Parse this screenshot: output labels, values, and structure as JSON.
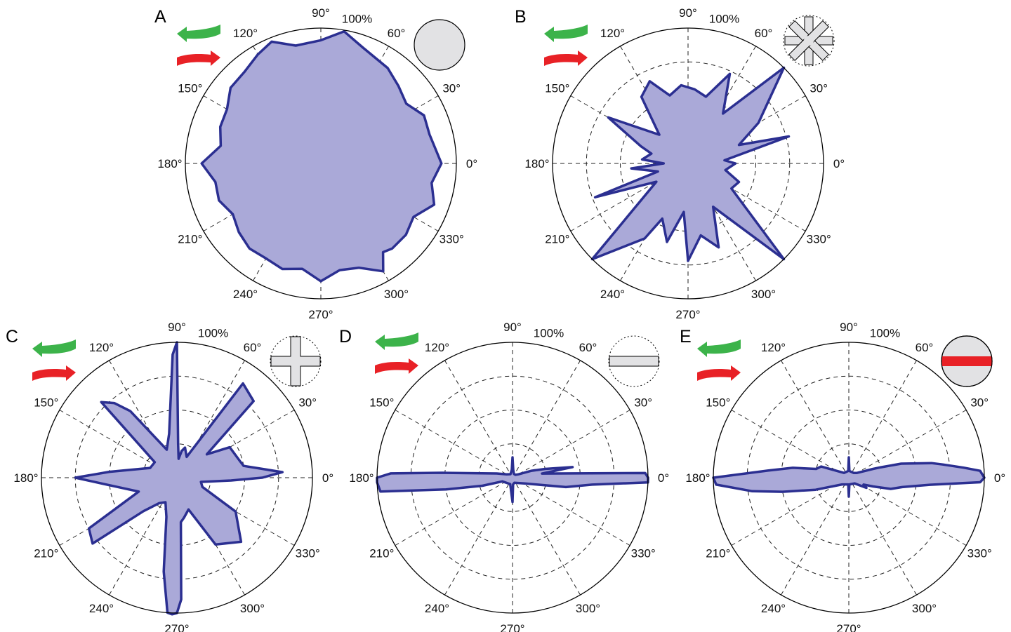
{
  "page": {
    "colors": {
      "fill": "#aaa9d8",
      "stroke": "#2b2f91",
      "green_arrow": "#3cb34a",
      "red_arrow": "#e82126",
      "icon_fill": "#e2e2e4",
      "red_bar": "#e82126"
    },
    "icons": [
      "green-arrow-left-icon",
      "red-arrow-right-icon"
    ]
  },
  "chart_data": [
    {
      "panel": "A",
      "type": "polar-area",
      "angle_tick_labels": [
        "0°",
        "30°",
        "60°",
        "90°",
        "120°",
        "150°",
        "180°",
        "210°",
        "240°",
        "270°",
        "300°",
        "330°"
      ],
      "radius_label": "100%",
      "rlim": [
        0,
        100
      ],
      "rings": [
        25,
        50,
        75,
        100
      ],
      "grid": true,
      "inset_icon": "solid-disc-icon",
      "angles": [
        0,
        15,
        25,
        35,
        45,
        55,
        70,
        80,
        90,
        102,
        112,
        120,
        130,
        140,
        150,
        160,
        170,
        180,
        190,
        200,
        210,
        220,
        230,
        240,
        250,
        260,
        270,
        280,
        290,
        300,
        305,
        310,
        320,
        330,
        340,
        350
      ],
      "values": [
        89,
        83,
        84,
        77,
        81,
        86,
        91,
        99,
        91,
        89,
        97,
        93,
        88,
        87,
        80,
        79,
        75,
        88,
        79,
        80,
        75,
        79,
        82,
        81,
        83,
        79,
        87,
        80,
        82,
        92,
        80,
        82,
        82,
        79,
        89,
        83
      ]
    },
    {
      "panel": "B",
      "type": "polar-area",
      "angle_tick_labels": [
        "0°",
        "30°",
        "60°",
        "90°",
        "120°",
        "150°",
        "180°",
        "210°",
        "240°",
        "270°",
        "300°",
        "330°"
      ],
      "radius_label": "100%",
      "rlim": [
        0,
        100
      ],
      "rings": [
        25,
        50,
        75,
        100
      ],
      "grid": true,
      "inset_icon": "asterisk-cutout-icon",
      "angles": [
        0,
        5,
        15,
        20,
        30,
        45,
        55,
        65,
        75,
        85,
        95,
        105,
        115,
        125,
        135,
        150,
        160,
        165,
        175,
        180,
        185,
        195,
        200,
        210,
        225,
        240,
        245,
        255,
        265,
        270,
        280,
        290,
        300,
        315,
        330,
        340,
        350
      ],
      "values": [
        35,
        27,
        77,
        40,
        60,
        100,
        45,
        73,
        51,
        55,
        58,
        52,
        67,
        60,
        30,
        68,
        37,
        28,
        34,
        18,
        42,
        23,
        73,
        27,
        100,
        64,
        45,
        60,
        36,
        72,
        54,
        66,
        37,
        100,
        37,
        40,
        28
      ]
    },
    {
      "panel": "C",
      "type": "polar-area",
      "angle_tick_labels": [
        "0°",
        "30°",
        "60°",
        "90°",
        "120°",
        "150°",
        "180°",
        "210°",
        "240°",
        "270°",
        "300°",
        "330°"
      ],
      "radius_label": "100%",
      "rlim": [
        0,
        100
      ],
      "rings": [
        25,
        50,
        75,
        100
      ],
      "grid": true,
      "inset_icon": "plus-cutout-icon",
      "angles": [
        0,
        3,
        10,
        15,
        30,
        38,
        45,
        55,
        65,
        75,
        80,
        85,
        88,
        90,
        92,
        100,
        110,
        125,
        130,
        135,
        145,
        160,
        175,
        180,
        185,
        200,
        210,
        218,
        225,
        235,
        245,
        255,
        262,
        266,
        268,
        270,
        272,
        275,
        280,
        290,
        300,
        315,
        330,
        340,
        350,
        357
      ],
      "values": [
        63,
        78,
        50,
        48,
        45,
        28,
        80,
        85,
        17,
        23,
        20,
        14,
        25,
        100,
        91,
        33,
        22,
        60,
        72,
        79,
        20,
        21,
        50,
        75,
        54,
        30,
        75,
        79,
        35,
        23,
        20,
        30,
        70,
        100,
        101,
        100,
        90,
        33,
        30,
        25,
        57,
        67,
        50,
        20,
        18,
        40
      ],
      "radius_clip": 1.03
    },
    {
      "panel": "D",
      "type": "polar-area",
      "angle_tick_labels": [
        "0°",
        "30°",
        "60°",
        "90°",
        "120°",
        "150°",
        "180°",
        "210°",
        "240°",
        "270°",
        "300°",
        "330°"
      ],
      "radius_label": "100%",
      "rlim": [
        0,
        100
      ],
      "rings": [
        25,
        50,
        75,
        100
      ],
      "grid": true,
      "inset_icon": "horizontal-bar-cutout-icon",
      "angles": [
        0,
        2,
        4,
        8,
        10,
        15,
        20,
        30,
        45,
        70,
        85,
        90,
        95,
        120,
        150,
        165,
        172,
        176,
        178,
        180,
        182,
        186,
        190,
        195,
        200,
        250,
        270,
        275,
        290,
        335,
        345,
        350,
        355,
        358
      ],
      "values": [
        100,
        98,
        45,
        22,
        45,
        25,
        15,
        5,
        3,
        3,
        6,
        15,
        6,
        3,
        5,
        12,
        23,
        52,
        90,
        100,
        100,
        98,
        50,
        23,
        8,
        5,
        18,
        5,
        4,
        10,
        20,
        40,
        59,
        100
      ]
    },
    {
      "panel": "E",
      "type": "polar-area",
      "angle_tick_labels": [
        "0°",
        "30°",
        "60°",
        "90°",
        "120°",
        "150°",
        "180°",
        "210°",
        "240°",
        "270°",
        "300°",
        "330°"
      ],
      "radius_label": "100%",
      "rlim": [
        0,
        100
      ],
      "rings": [
        25,
        50,
        75,
        100
      ],
      "grid": true,
      "inset_icon": "disc-with-red-bar-icon",
      "angles": [
        0,
        3,
        5,
        8,
        10,
        15,
        18,
        20,
        30,
        45,
        85,
        90,
        95,
        135,
        150,
        158,
        165,
        170,
        175,
        180,
        183,
        188,
        192,
        200,
        225,
        265,
        270,
        275,
        315,
        330,
        335,
        340,
        345,
        350,
        355,
        358
      ],
      "values": [
        100,
        97,
        85,
        70,
        62,
        40,
        25,
        19,
        7,
        5,
        5,
        15,
        5,
        5,
        10,
        22,
        25,
        42,
        60,
        100,
        98,
        72,
        50,
        26,
        7,
        5,
        14,
        5,
        6,
        15,
        12,
        19,
        32,
        40,
        60,
        97
      ]
    }
  ]
}
